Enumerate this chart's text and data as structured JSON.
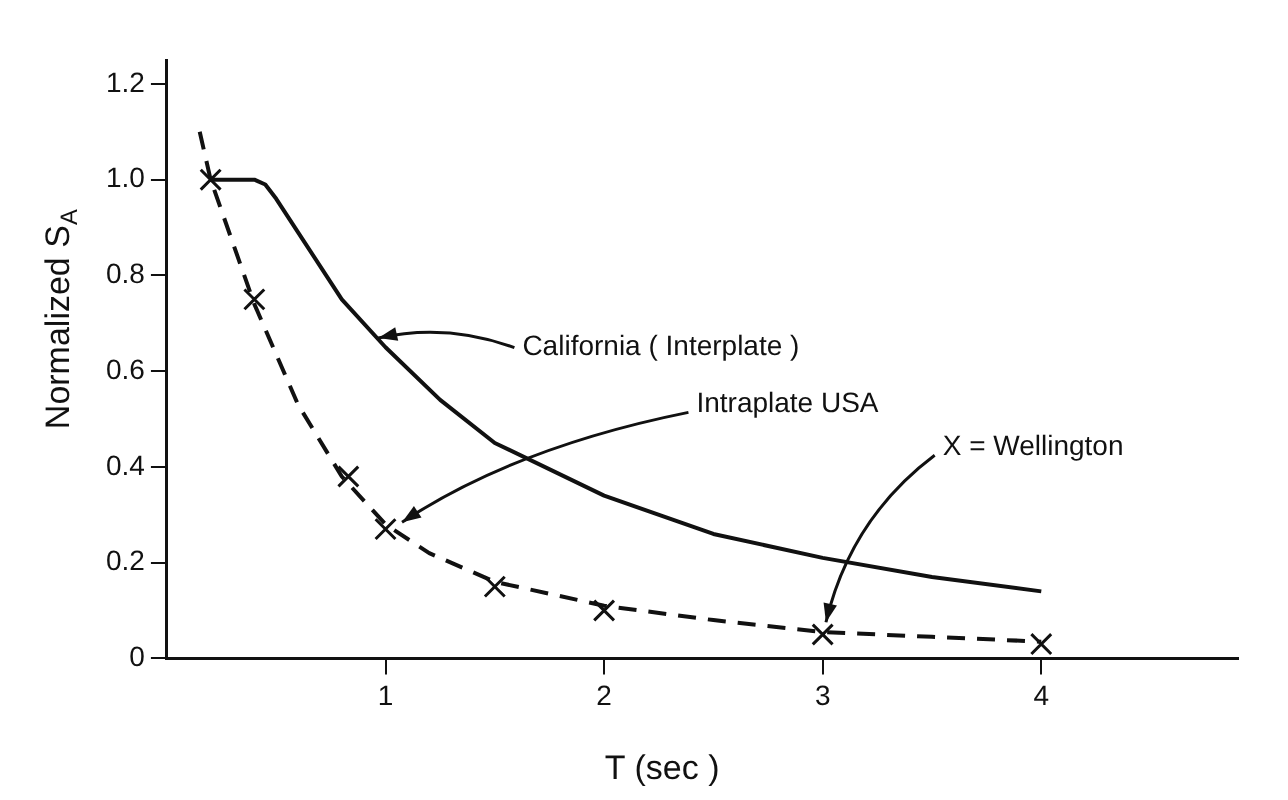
{
  "chart_data": {
    "type": "line",
    "xlabel": "T (sec )",
    "ylabel": "Normalized S$_{A}$",
    "xlim": [
      0,
      4.9
    ],
    "ylim": [
      0,
      1.25
    ],
    "xticks": [
      1,
      2,
      3,
      4
    ],
    "yticks": [
      0,
      0.2,
      0.4,
      0.6,
      0.8,
      {
        "value": 1,
        "label": "1.0"
      },
      1.2
    ],
    "grid": false,
    "legend": false,
    "series": [
      {
        "color": "#111111",
        "line_style": "solid",
        "marker": "none",
        "x": [
          0.2,
          0.25,
          0.4,
          0.45,
          0.5,
          0.6,
          0.8,
          1.0,
          1.25,
          1.5,
          2.0,
          2.5,
          3.0,
          3.5,
          4.0
        ],
        "values": [
          1.0,
          1.0,
          1.0,
          0.99,
          0.96,
          0.89,
          0.75,
          0.65,
          0.54,
          0.45,
          0.34,
          0.26,
          0.21,
          0.17,
          0.14
        ]
      },
      {
        "color": "#111111",
        "line_style": "dashed",
        "marker": "none",
        "x": [
          0.15,
          0.2,
          0.4,
          0.6,
          0.8,
          1.0,
          1.2,
          1.5,
          2.0,
          2.5,
          3.0,
          3.5,
          4.0
        ],
        "values": [
          1.1,
          1.0,
          0.74,
          0.53,
          0.38,
          0.28,
          0.22,
          0.16,
          0.11,
          0.08,
          0.055,
          0.045,
          0.035
        ]
      },
      {
        "type": "scatter",
        "color": "#111111",
        "marker": "cross",
        "x": [
          0.2,
          0.4,
          0.83,
          1.0,
          1.5,
          2.0,
          3.0,
          4.0
        ],
        "values": [
          1.0,
          0.75,
          0.38,
          0.27,
          0.15,
          0.1,
          0.05,
          0.03
        ]
      }
    ],
    "annotations": [
      {
        "text": "California ( Interplate )",
        "x": 0.94,
        "y": 0.67
      },
      {
        "text": "Intraplate USA",
        "x": 1.05,
        "y": 0.28
      },
      {
        "text": "X = Wellington",
        "x": 3.0,
        "y": 0.065
      }
    ]
  }
}
